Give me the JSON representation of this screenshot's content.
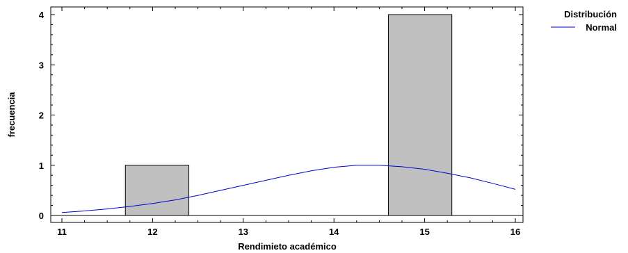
{
  "chart_data": {
    "type": "bar",
    "subtype": "histogram",
    "xlabel": "Rendimieto académico",
    "ylabel": "frecuencia",
    "xlim": [
      10.9,
      16.1
    ],
    "ylim": [
      -0.12,
      4.2
    ],
    "xticks": [
      "11",
      "12",
      "13",
      "14",
      "15",
      "16"
    ],
    "yticks": [
      "0",
      "1",
      "2",
      "3",
      "4"
    ],
    "grid": false,
    "bins": [
      {
        "x0": 11.7,
        "x1": 12.4,
        "value": 1
      },
      {
        "x0": 14.6,
        "x1": 15.3,
        "value": 4
      }
    ],
    "bar_color": "#c0c0c0",
    "curve_color": "#0000cc",
    "series": [
      {
        "name": "Normal",
        "type": "line",
        "x": [
          11.0,
          11.25,
          11.5,
          11.75,
          12.0,
          12.25,
          12.5,
          12.75,
          13.0,
          13.25,
          13.5,
          13.75,
          14.0,
          14.25,
          14.5,
          14.75,
          15.0,
          15.25,
          15.5,
          15.75,
          16.0
        ],
        "values": [
          0.06,
          0.09,
          0.13,
          0.18,
          0.24,
          0.31,
          0.4,
          0.5,
          0.6,
          0.7,
          0.8,
          0.89,
          0.96,
          1.0,
          1.0,
          0.97,
          0.92,
          0.84,
          0.75,
          0.64,
          0.52
        ]
      }
    ],
    "legend": {
      "title": "Distribución",
      "entries": [
        "Normal"
      ],
      "position": "top-right"
    }
  }
}
